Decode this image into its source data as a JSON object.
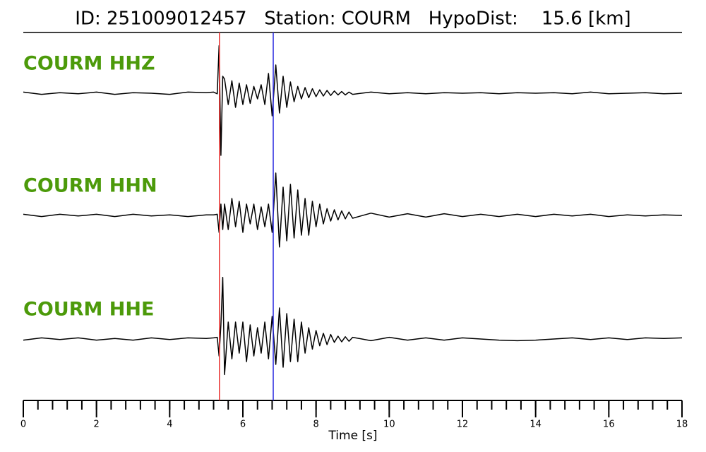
{
  "chart_data": {
    "type": "line",
    "title": "ID: 251009012457   Station: COURM   HypoDist:    15.6 [km]",
    "x_label": "Time [s]",
    "xlim": [
      0,
      18
    ],
    "xticks": [
      0,
      2,
      4,
      6,
      8,
      10,
      12,
      14,
      16,
      18
    ],
    "xticks_minor": [
      0,
      0.4,
      0.8,
      1.2,
      1.6,
      2,
      2.4,
      2.8,
      3.2,
      3.6,
      4,
      4.4,
      4.8,
      5.2,
      5.6,
      6,
      6.4,
      6.8,
      7.2,
      7.6,
      8,
      8.4,
      8.8,
      9.2,
      9.6,
      10,
      10.4,
      10.8,
      11.2,
      11.6,
      12,
      12.4,
      12.8,
      13.2,
      13.6,
      14,
      14.4,
      14.8,
      15.2,
      15.6,
      16,
      16.4,
      16.8,
      17.2,
      17.6,
      18
    ],
    "ylim": [
      -1.2,
      1.2
    ],
    "label_color": "#4c9a0a",
    "picks": [
      {
        "value": 5.36,
        "color": "#e8312f"
      },
      {
        "value": 6.83,
        "color": "#2a2ae0"
      }
    ],
    "x": [
      0,
      0.5,
      1,
      1.5,
      2,
      2.5,
      3,
      3.5,
      4,
      4.5,
      5,
      5.2,
      5.3,
      5.35,
      5.4,
      5.45,
      5.5,
      5.6,
      5.7,
      5.8,
      5.9,
      6.0,
      6.1,
      6.2,
      6.3,
      6.4,
      6.5,
      6.6,
      6.7,
      6.8,
      6.9,
      7.0,
      7.1,
      7.2,
      7.3,
      7.4,
      7.5,
      7.6,
      7.7,
      7.8,
      7.9,
      8.0,
      8.1,
      8.2,
      8.3,
      8.4,
      8.5,
      8.6,
      8.7,
      8.8,
      8.9,
      9.0,
      9.5,
      10,
      10.5,
      11,
      11.5,
      12,
      12.5,
      13,
      13.5,
      14,
      14.5,
      15,
      15.5,
      16,
      16.5,
      17,
      17.5,
      18
    ],
    "series": [
      {
        "name": "COURM HHZ",
        "color": "#000000",
        "values": [
          0.02,
          -0.02,
          0.01,
          -0.01,
          0.02,
          -0.02,
          0.01,
          0.0,
          -0.02,
          0.02,
          0.01,
          0.02,
          -0.01,
          0.84,
          -1.1,
          0.3,
          0.25,
          -0.2,
          0.22,
          -0.25,
          0.18,
          -0.2,
          0.15,
          -0.18,
          0.12,
          -0.1,
          0.15,
          -0.2,
          0.35,
          -0.4,
          0.5,
          -0.35,
          0.3,
          -0.25,
          0.2,
          -0.15,
          0.12,
          -0.1,
          0.1,
          -0.08,
          0.08,
          -0.06,
          0.06,
          -0.05,
          0.05,
          -0.04,
          0.04,
          -0.03,
          0.03,
          -0.03,
          0.02,
          -0.02,
          0.02,
          -0.01,
          0.01,
          -0.01,
          0.01,
          0.0,
          0.01,
          -0.01,
          0.01,
          0.0,
          0.01,
          -0.01,
          0.02,
          -0.01,
          0.0,
          0.01,
          -0.01,
          0.0
        ]
      },
      {
        "name": "COURM HHN",
        "color": "#000000",
        "values": [
          0.02,
          -0.02,
          0.02,
          -0.01,
          0.02,
          -0.02,
          0.02,
          -0.01,
          0.01,
          -0.02,
          0.01,
          0.01,
          0.02,
          -0.3,
          0.2,
          -0.25,
          0.2,
          -0.25,
          0.3,
          -0.2,
          0.25,
          -0.3,
          0.2,
          -0.15,
          0.2,
          -0.25,
          0.15,
          -0.2,
          0.2,
          -0.3,
          0.75,
          -0.56,
          0.5,
          -0.45,
          0.55,
          -0.4,
          0.45,
          -0.35,
          0.3,
          -0.35,
          0.25,
          -0.2,
          0.2,
          -0.15,
          0.12,
          -0.1,
          0.1,
          -0.08,
          0.08,
          -0.06,
          0.06,
          -0.05,
          0.04,
          -0.03,
          0.03,
          -0.03,
          0.03,
          -0.02,
          0.02,
          -0.02,
          0.02,
          -0.02,
          0.02,
          -0.01,
          0.02,
          -0.02,
          0.01,
          -0.01,
          0.01,
          0.0
        ]
      },
      {
        "name": "COURM HHE",
        "color": "#000000",
        "values": [
          -0.02,
          0.02,
          -0.01,
          0.02,
          -0.02,
          0.01,
          -0.02,
          0.02,
          -0.01,
          0.02,
          0.01,
          0.02,
          0.03,
          -0.3,
          0.25,
          1.09,
          -0.63,
          0.3,
          -0.35,
          0.3,
          -0.25,
          0.3,
          -0.4,
          0.25,
          -0.3,
          0.2,
          -0.25,
          0.3,
          -0.35,
          0.4,
          -0.45,
          0.55,
          -0.5,
          0.45,
          -0.4,
          0.35,
          -0.4,
          0.3,
          -0.25,
          0.2,
          -0.18,
          0.15,
          -0.12,
          0.1,
          -0.1,
          0.08,
          -0.06,
          0.05,
          -0.05,
          0.04,
          -0.04,
          0.03,
          -0.03,
          0.03,
          -0.02,
          0.02,
          -0.02,
          0.02,
          0.0,
          -0.02,
          -0.03,
          -0.02,
          0.0,
          0.02,
          -0.01,
          0.02,
          -0.01,
          0.02,
          0.01,
          0.02
        ]
      }
    ]
  }
}
